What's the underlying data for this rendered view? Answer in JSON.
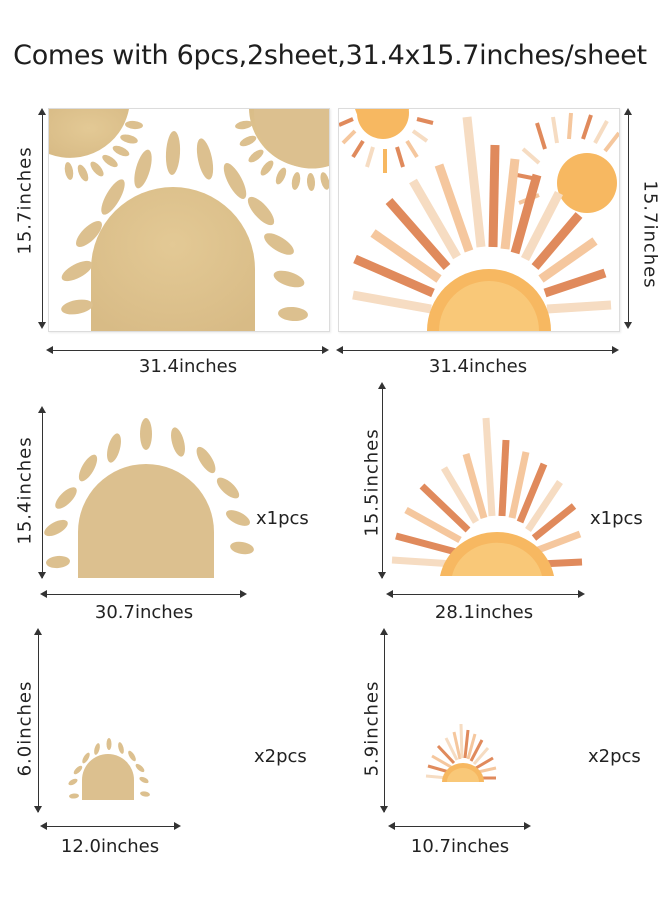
{
  "title": "Comes with 6pcs,2sheet,31.4x15.7inches/sheet",
  "sheet_left": {
    "width_label": "31.4inches",
    "height_label": "15.7inches"
  },
  "sheet_right": {
    "width_label": "31.4inches",
    "height_label": "15.7inches"
  },
  "large_tan_sun": {
    "width_label": "30.7inches",
    "height_label": "15.4inches",
    "qty": "x1pcs"
  },
  "large_orange_sun": {
    "width_label": "28.1inches",
    "height_label": "15.5inches",
    "qty": "x1pcs"
  },
  "small_tan_sun": {
    "width_label": "12.0inches",
    "height_label": "6.0inches",
    "qty": "x2pcs"
  },
  "small_orange_sun": {
    "width_label": "10.7inches",
    "height_label": "5.9inches",
    "qty": "x2pcs"
  },
  "colors": {
    "tan": "#dcc08f",
    "tan_light": "#e4cc9f",
    "orange": "#f7b861",
    "orange_light": "#f9cf8a",
    "terracotta": "#e08a5c",
    "peach": "#f5c79e",
    "pale": "#f6dcc2"
  }
}
